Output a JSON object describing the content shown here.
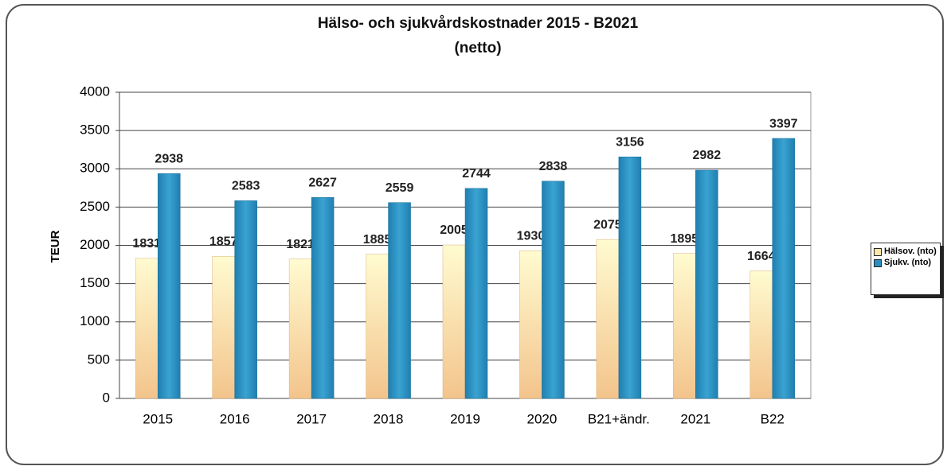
{
  "chart_data": {
    "type": "bar",
    "title": "Hälso- och sjukvårdskostnader 2015 - B2021 (netto)",
    "y_label": "TEUR",
    "categories": [
      "2015",
      "2016",
      "2017",
      "2018",
      "2019",
      "2020",
      "B21+ändr.",
      "2021",
      "B22"
    ],
    "series": [
      {
        "name": "Hälsov. (nto)",
        "color": "#f9e6a8",
        "values": [
          1831,
          1857,
          1821,
          1885,
          2005,
          1930,
          2075,
          1895,
          1664
        ]
      },
      {
        "name": "Sjukv. (nto)",
        "color": "#2a8fc0",
        "values": [
          2938,
          2583,
          2627,
          2559,
          2744,
          2838,
          3156,
          2982,
          3397
        ]
      }
    ],
    "ylim": [
      0,
      4000
    ],
    "yticks": [
      0,
      500,
      1000,
      1500,
      2000,
      2500,
      3000,
      3500,
      4000
    ],
    "grid": true,
    "legend": "right"
  }
}
